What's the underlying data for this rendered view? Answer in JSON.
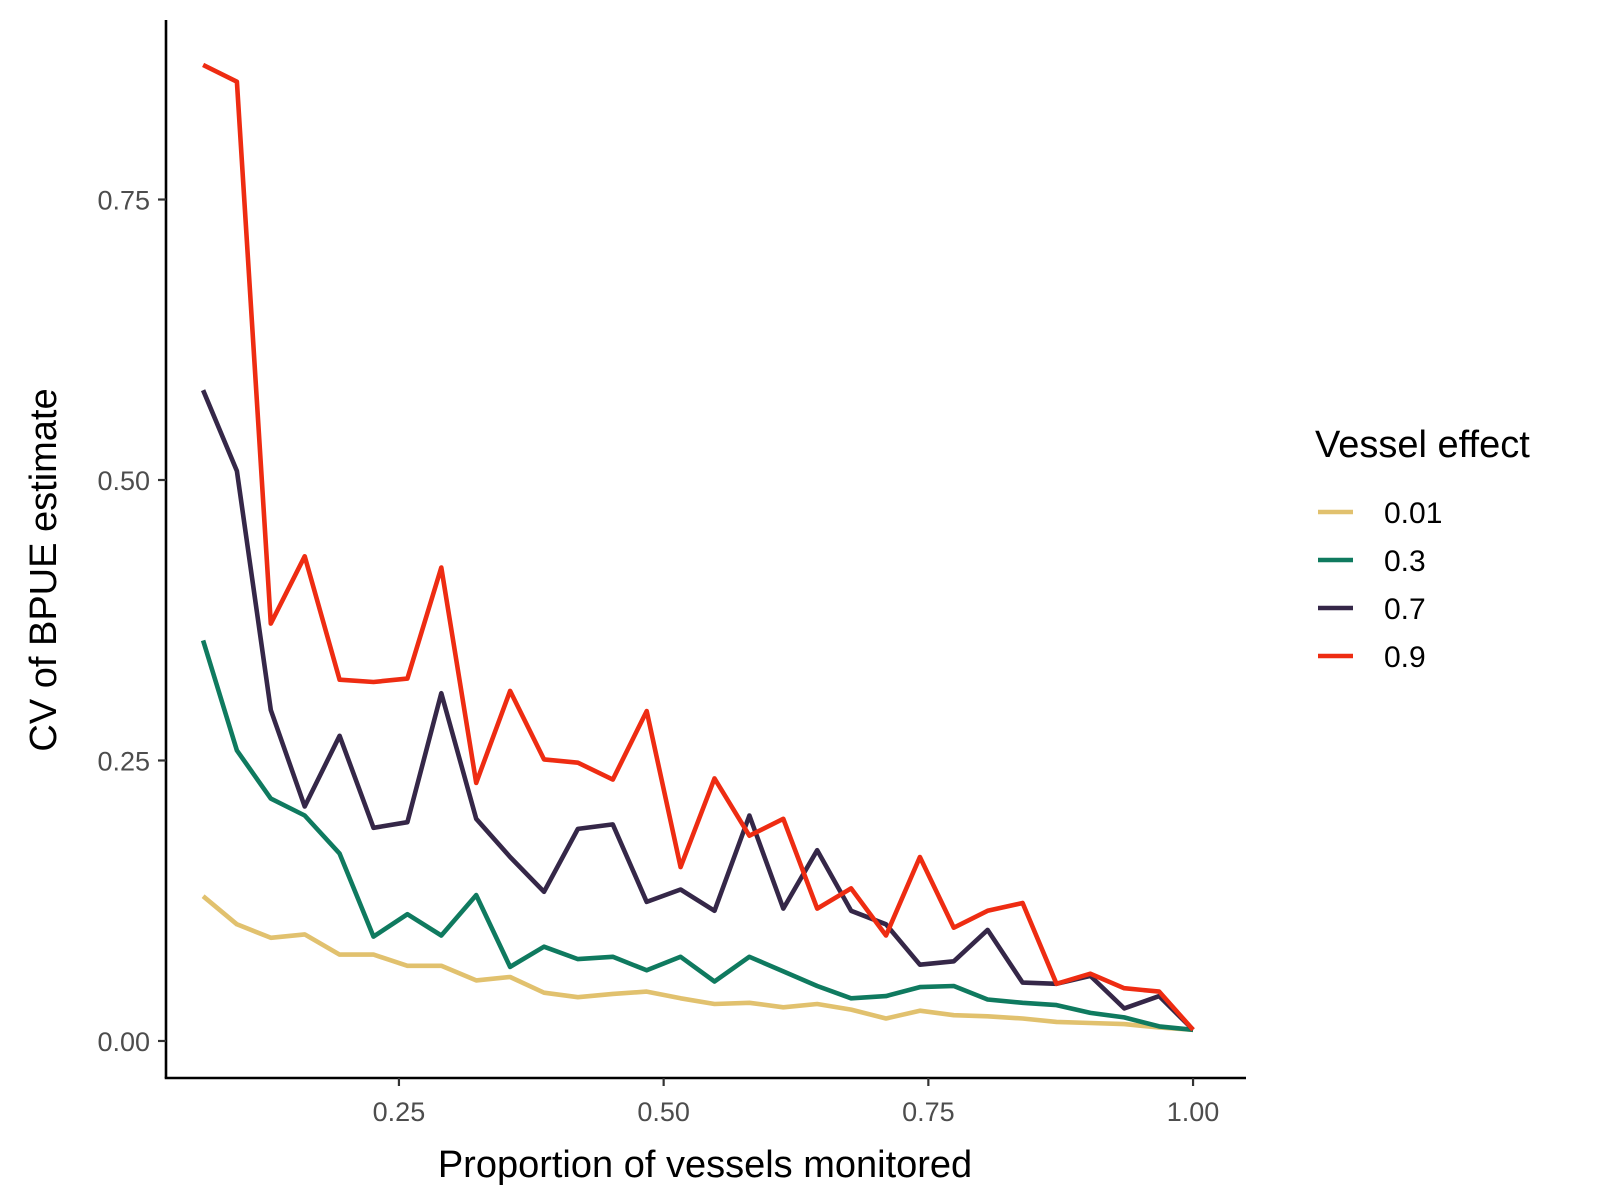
{
  "chart_data": {
    "type": "line",
    "xlabel": "Proportion of vessels monitored",
    "ylabel": "CV of BPUE estimate",
    "xlim": [
      0.03,
      1.05
    ],
    "ylim": [
      -0.033,
      0.91
    ],
    "x_ticks": [
      0.25,
      0.5,
      0.75,
      1.0
    ],
    "x_tick_labels": [
      "0.25",
      "0.50",
      "0.75",
      "1.00"
    ],
    "y_ticks": [
      0.0,
      0.25,
      0.5,
      0.75
    ],
    "y_tick_labels": [
      "0.00",
      "0.25",
      "0.50",
      "0.75"
    ],
    "grid": false,
    "legend": {
      "title": "Vessel effect",
      "placement": "right"
    },
    "x": [
      0.065,
      0.097,
      0.129,
      0.161,
      0.194,
      0.226,
      0.258,
      0.29,
      0.323,
      0.355,
      0.387,
      0.419,
      0.452,
      0.484,
      0.516,
      0.548,
      0.581,
      0.613,
      0.645,
      0.677,
      0.71,
      0.742,
      0.774,
      0.806,
      0.839,
      0.871,
      0.903,
      0.935,
      0.968,
      1.0
    ],
    "series": [
      {
        "name": "0.01",
        "color": "#e1c16e",
        "values": [
          0.129,
          0.104,
          0.092,
          0.095,
          0.077,
          0.077,
          0.067,
          0.067,
          0.054,
          0.057,
          0.043,
          0.039,
          0.042,
          0.044,
          0.038,
          0.033,
          0.034,
          0.03,
          0.033,
          0.028,
          0.02,
          0.027,
          0.023,
          0.022,
          0.02,
          0.017,
          0.016,
          0.015,
          0.012,
          0.01
        ]
      },
      {
        "name": "0.3",
        "color": "#0f7a5f",
        "values": [
          0.357,
          0.259,
          0.216,
          0.201,
          0.167,
          0.093,
          0.113,
          0.094,
          0.13,
          0.066,
          0.084,
          0.073,
          0.075,
          0.063,
          0.075,
          0.053,
          0.075,
          0.062,
          0.049,
          0.038,
          0.04,
          0.048,
          0.049,
          0.037,
          0.034,
          0.032,
          0.025,
          0.021,
          0.013,
          0.01
        ]
      },
      {
        "name": "0.7",
        "color": "#352748",
        "values": [
          0.58,
          0.508,
          0.295,
          0.209,
          0.272,
          0.19,
          0.195,
          0.31,
          0.198,
          0.164,
          0.133,
          0.189,
          0.193,
          0.124,
          0.135,
          0.116,
          0.201,
          0.118,
          0.17,
          0.116,
          0.104,
          0.068,
          0.071,
          0.099,
          0.052,
          0.051,
          0.058,
          0.029,
          0.04,
          0.01
        ]
      },
      {
        "name": "0.9",
        "color": "#ee2c12",
        "values": [
          0.87,
          0.855,
          0.372,
          0.432,
          0.322,
          0.32,
          0.323,
          0.422,
          0.23,
          0.312,
          0.251,
          0.248,
          0.233,
          0.294,
          0.155,
          0.234,
          0.183,
          0.198,
          0.118,
          0.136,
          0.094,
          0.164,
          0.101,
          0.116,
          0.123,
          0.051,
          0.06,
          0.047,
          0.044,
          0.01
        ]
      }
    ]
  }
}
